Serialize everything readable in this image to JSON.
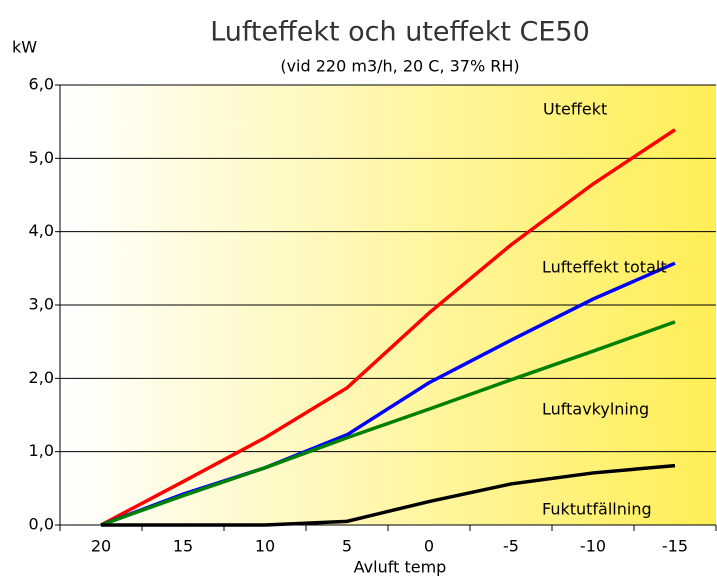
{
  "chart_data": {
    "type": "line",
    "title": "Lufteffekt och uteffekt CE50",
    "subtitle": "(vid 220 m3/h, 20 C, 37% RH)",
    "y_label": "kW",
    "x_label": "Avluft temp",
    "categories": [
      "20",
      "15",
      "10",
      "5",
      "0",
      "-5",
      "-10",
      "-15"
    ],
    "series": [
      {
        "name": "Uteffekt",
        "color": "#ff0000",
        "values": [
          0,
          0.59,
          1.19,
          1.87,
          2.89,
          3.82,
          4.65,
          5.39
        ]
      },
      {
        "name": "Lufteffekt totalt",
        "color": "#0000ff",
        "values": [
          0,
          0.42,
          0.78,
          1.23,
          1.94,
          2.52,
          3.08,
          3.57
        ]
      },
      {
        "name": "Luftavkylning",
        "color": "#008000",
        "values": [
          0,
          0.4,
          0.78,
          1.19,
          1.58,
          1.98,
          2.37,
          2.77
        ]
      },
      {
        "name": "Fuktutfällning",
        "color": "#000000",
        "values": [
          0,
          0,
          0,
          0.05,
          0.32,
          0.56,
          0.71,
          0.81
        ]
      }
    ],
    "ylim": [
      0,
      6
    ],
    "yticks": [
      {
        "value": 0,
        "label": "0,0"
      },
      {
        "value": 1,
        "label": "1,0"
      },
      {
        "value": 2,
        "label": "2,0"
      },
      {
        "value": 3,
        "label": "3,0"
      },
      {
        "value": 4,
        "label": "4,0"
      },
      {
        "value": 5,
        "label": "5,0"
      },
      {
        "value": 6,
        "label": "6,0"
      }
    ],
    "grid": true
  }
}
